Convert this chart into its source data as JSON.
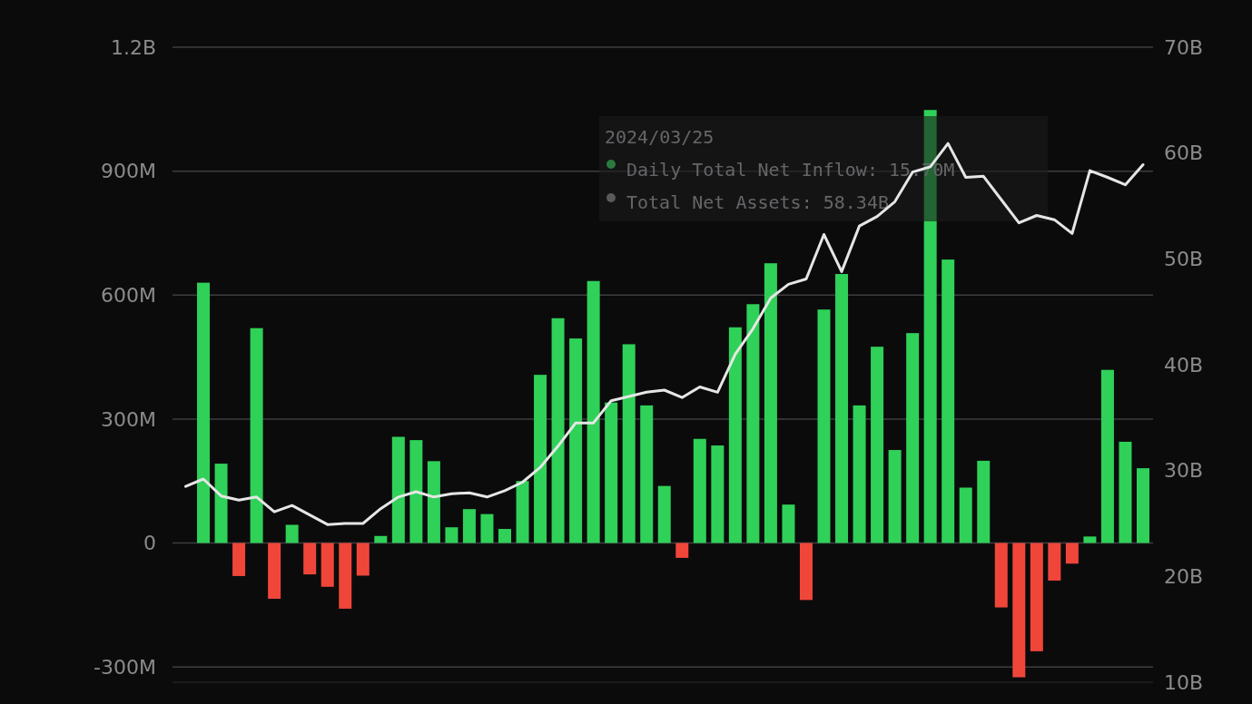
{
  "chart_data": {
    "type": "bar",
    "categories": [
      null,
      null,
      null,
      null,
      null,
      null,
      null,
      null,
      null,
      null,
      null,
      null,
      null,
      null,
      null,
      null,
      null,
      null,
      null,
      null,
      null,
      null,
      null,
      null,
      null,
      null,
      null,
      null,
      null,
      null,
      null,
      null,
      null,
      null,
      null,
      null,
      null,
      null,
      null,
      null,
      null,
      null,
      null,
      null,
      null,
      null,
      null,
      null,
      null,
      null,
      null,
      null,
      null,
      null,
      null
    ],
    "series": [
      {
        "values": [
          null,
          630000000,
          192000000,
          -80000000,
          520000000,
          -135000000,
          44000000,
          -76000000,
          -106000000,
          -159000000,
          -79000000,
          17000000,
          257000000,
          249000000,
          198000000,
          38000000,
          82000000,
          70000000,
          34000000,
          150000000,
          407000000,
          544000000,
          495000000,
          634000000,
          340000000,
          481000000,
          333000000,
          138000000,
          -36000000,
          252000000,
          236000000,
          522000000,
          578000000,
          677000000,
          93000000,
          -138000000,
          565000000,
          651000000,
          333000000,
          475000000,
          225000000,
          508000000,
          1048000000,
          686000000,
          134000000,
          199000000,
          -156000000,
          -325000000,
          -262000000,
          -91000000,
          -50000000,
          15700000,
          419000000,
          245000000,
          181000000
        ],
        "colors": [
          null,
          "#2fd158",
          "#2fd158",
          "#f0463a",
          "#2fd158",
          "#f0463a",
          "#2fd158",
          "#f0463a",
          "#f0463a",
          "#f0463a",
          "#f0463a",
          "#2fd158",
          "#2fd158",
          "#2fd158",
          "#2fd158",
          "#2fd158",
          "#2fd158",
          "#2fd158",
          "#2fd158",
          "#2fd158",
          "#2fd158",
          "#2fd158",
          "#2fd158",
          "#2fd158",
          "#2fd158",
          "#2fd158",
          "#2fd158",
          "#2fd158",
          "#f0463a",
          "#2fd158",
          "#2fd158",
          "#2fd158",
          "#2fd158",
          "#2fd158",
          "#2fd158",
          "#f0463a",
          "#2fd158",
          "#2fd158",
          "#2fd158",
          "#2fd158",
          "#2fd158",
          "#2fd158",
          "#2fd158",
          "#2fd158",
          "#2fd158",
          "#2fd158",
          "#f0463a",
          "#f0463a",
          "#f0463a",
          "#f0463a",
          "#f0463a",
          "#2fd158",
          "#2fd158",
          "#2fd158",
          "#2fd158"
        ]
      },
      {
        "type": "line",
        "axis": "y2",
        "color": "#e6e6e6",
        "values": [
          28.5,
          29.2,
          27.6,
          27.2,
          27.5,
          26.1,
          26.7,
          25.8,
          24.9,
          25.0,
          25.0,
          26.4,
          27.5,
          28.0,
          27.5,
          27.8,
          27.9,
          27.5,
          28.1,
          28.9,
          30.3,
          32.3,
          34.5,
          34.5,
          36.6,
          37.0,
          37.4,
          37.6,
          36.9,
          37.9,
          37.4,
          41.0,
          43.4,
          46.3,
          47.6,
          48.1,
          52.3,
          48.8,
          53.1,
          54.0,
          55.4,
          58.2,
          58.7,
          60.9,
          57.7,
          57.8,
          55.6,
          53.4,
          54.1,
          53.7,
          52.4,
          58.34,
          57.7,
          57.0,
          58.9
        ]
      }
    ],
    "ylim": [
      -337000000,
      1200000000
    ],
    "yticks": [
      {
        "value": -300000000,
        "label": "-300M"
      },
      {
        "value": 0,
        "label": "0"
      },
      {
        "value": 300000000,
        "label": "300M"
      },
      {
        "value": 600000000,
        "label": "600M"
      },
      {
        "value": 900000000,
        "label": "900M"
      },
      {
        "value": 1200000000,
        "label": "1.2B"
      }
    ],
    "y2lim": [
      10,
      70
    ],
    "y2ticks": [
      {
        "value": 10,
        "label": "10B"
      },
      {
        "value": 20,
        "label": "20B"
      },
      {
        "value": 30,
        "label": "30B"
      },
      {
        "value": 40,
        "label": "40B"
      },
      {
        "value": 50,
        "label": "50B"
      },
      {
        "value": 60,
        "label": "60B"
      },
      {
        "value": 70,
        "label": "70B"
      }
    ],
    "grid": "y",
    "marker": "none",
    "annotations": [
      "2024/03/25",
      "Daily Total Net Inflow: 15.70M",
      "Total Net Assets: 58.34B"
    ]
  }
}
